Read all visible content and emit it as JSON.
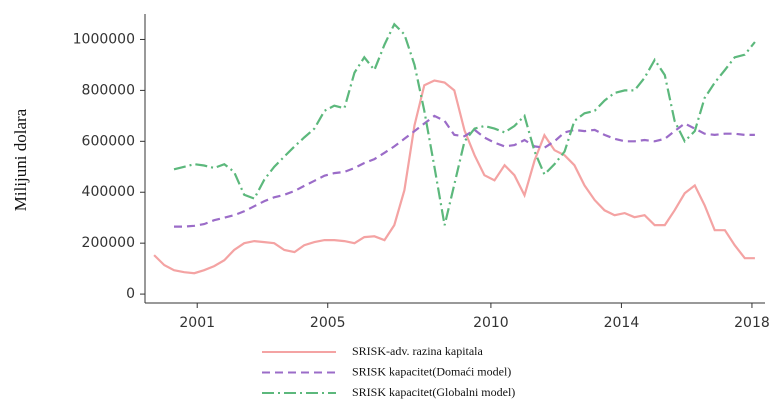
{
  "chart_data": {
    "type": "line",
    "y_label": "Milijuni dolara",
    "x": [
      1999.68,
      1999.99,
      2000.29,
      2000.6,
      2000.91,
      2001.21,
      2001.52,
      2001.83,
      2002.13,
      2002.44,
      2002.75,
      2003.06,
      2003.36,
      2003.67,
      2003.98,
      2004.28,
      2004.59,
      2004.9,
      2005.2,
      2005.51,
      2005.82,
      2006.12,
      2006.43,
      2006.74,
      2007.04,
      2007.35,
      2007.66,
      2007.96,
      2008.27,
      2008.58,
      2008.88,
      2009.19,
      2009.5,
      2009.8,
      2010.11,
      2010.42,
      2010.72,
      2011.03,
      2011.34,
      2011.64,
      2011.95,
      2012.26,
      2012.56,
      2012.87,
      2013.18,
      2013.48,
      2013.79,
      2014.1,
      2014.4,
      2014.71,
      2015.02,
      2015.33,
      2015.63,
      2015.94,
      2016.25,
      2016.55,
      2016.86,
      2017.17,
      2017.47,
      2017.78,
      2018.09
    ],
    "series": [
      {
        "name": "SRISK-adv. razina kapitala",
        "color": "#f4a3a3",
        "dash": "solid",
        "values": [
          153000,
          114000,
          94000,
          86000,
          82000,
          94000,
          110000,
          133000,
          173000,
          200000,
          208000,
          204000,
          200000,
          173000,
          165000,
          192000,
          204000,
          212000,
          212000,
          208000,
          200000,
          224000,
          227000,
          212000,
          271000,
          408000,
          663000,
          820000,
          839000,
          831000,
          800000,
          643000,
          545000,
          467000,
          447000,
          506000,
          467000,
          388000,
          525000,
          624000,
          565000,
          545000,
          506000,
          427000,
          369000,
          329000,
          310000,
          318000,
          302000,
          310000,
          271000,
          271000,
          329000,
          396000,
          427000,
          349000,
          251000,
          251000,
          192000,
          141000,
          141000
        ]
      },
      {
        "name": "SRISK kapacitet(Domaći model)",
        "color": "#9b6cc8",
        "dash": "dashed",
        "values": [
          null,
          null,
          265000,
          265000,
          268000,
          275000,
          290000,
          300000,
          310000,
          325000,
          345000,
          365000,
          380000,
          390000,
          405000,
          425000,
          445000,
          465000,
          475000,
          480000,
          495000,
          515000,
          530000,
          555000,
          580000,
          610000,
          640000,
          670000,
          700000,
          680000,
          625000,
          620000,
          645000,
          615000,
          595000,
          580000,
          585000,
          605000,
          580000,
          575000,
          600000,
          635000,
          645000,
          640000,
          645000,
          625000,
          610000,
          600000,
          600000,
          605000,
          600000,
          610000,
          640000,
          670000,
          650000,
          630000,
          625000,
          630000,
          630000,
          625000,
          625000
        ]
      },
      {
        "name": "SRISK kapacitet(Globalni model)",
        "color": "#5cb87c",
        "dash": "dashdot",
        "values": [
          null,
          null,
          490000,
          500000,
          510000,
          505000,
          495000,
          510000,
          480000,
          390000,
          375000,
          450000,
          500000,
          540000,
          580000,
          615000,
          650000,
          720000,
          740000,
          730000,
          870000,
          930000,
          880000,
          980000,
          1060000,
          1020000,
          900000,
          720000,
          500000,
          270000,
          430000,
          600000,
          650000,
          660000,
          650000,
          635000,
          660000,
          700000,
          560000,
          470000,
          510000,
          560000,
          680000,
          710000,
          720000,
          760000,
          790000,
          800000,
          800000,
          850000,
          920000,
          860000,
          680000,
          600000,
          640000,
          770000,
          830000,
          880000,
          930000,
          940000,
          990000
        ]
      }
    ],
    "xlim": [
      1999.4,
      2018.4
    ],
    "xticks": [
      2001,
      2005,
      2010,
      2014,
      2018
    ],
    "ylim": [
      -35000,
      1100000
    ],
    "yticks": [
      0,
      200000,
      400000,
      600000,
      800000,
      1000000
    ],
    "grid": false,
    "legend": "bottom"
  }
}
